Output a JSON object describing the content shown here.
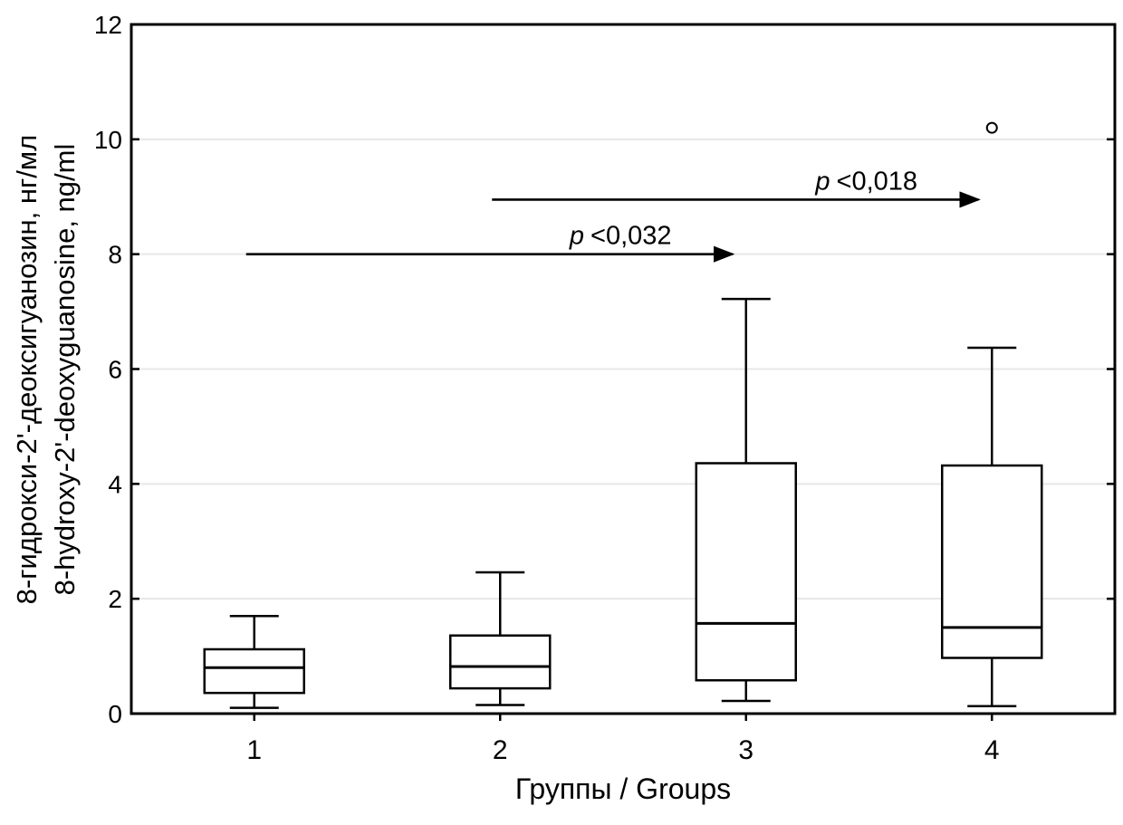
{
  "chart_data": {
    "type": "boxplot",
    "title": "",
    "xlabel": "Группы / Groups",
    "ylabel_ru": "8-гидрокси-2'-деоксигуанозин, нг/мл",
    "ylabel_en": "8-hydroxy-2'-deoxyguanosine, ng/ml",
    "ylim": [
      0,
      12
    ],
    "yticks": [
      0,
      2,
      4,
      6,
      8,
      10,
      12
    ],
    "grid": true,
    "legend": "none",
    "categories": [
      "1",
      "2",
      "3",
      "4"
    ],
    "boxes": [
      {
        "group": "1",
        "whisker_low": 0.1,
        "q1": 0.36,
        "median": 0.8,
        "q3": 1.12,
        "whisker_high": 1.7,
        "outliers": []
      },
      {
        "group": "2",
        "whisker_low": 0.15,
        "q1": 0.44,
        "median": 0.82,
        "q3": 1.36,
        "whisker_high": 2.46,
        "outliers": []
      },
      {
        "group": "3",
        "whisker_low": 0.22,
        "q1": 0.58,
        "median": 1.57,
        "q3": 4.36,
        "whisker_high": 7.22,
        "outliers": []
      },
      {
        "group": "4",
        "whisker_low": 0.13,
        "q1": 0.97,
        "median": 1.5,
        "q3": 4.32,
        "whisker_high": 6.37,
        "outliers": [
          10.2
        ]
      }
    ],
    "annotations": [
      {
        "label": "p <0,032",
        "p_symbol": "p",
        "p_value": "<0,032",
        "from_group": "1",
        "to_group": "3",
        "y": 8.0
      },
      {
        "label": "p <0,018",
        "p_symbol": "p",
        "p_value": "<0,018",
        "from_group": "2",
        "to_group": "4",
        "y": 8.95
      }
    ],
    "colors": {
      "line": "#000000",
      "grid": "#e7e7e7",
      "background": "#ffffff",
      "box_fill": "#ffffff"
    }
  }
}
